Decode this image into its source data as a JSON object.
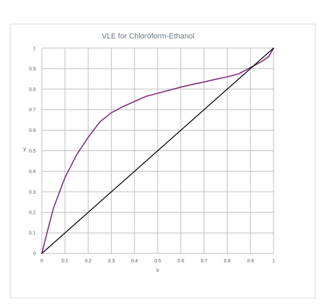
{
  "chart_data": {
    "type": "line",
    "title": "VLE for Chloroform-Ethanol",
    "xlabel": "x",
    "ylabel": "y",
    "xlim": [
      0,
      1
    ],
    "ylim": [
      0,
      1
    ],
    "x_ticks": [
      "0",
      "0.1",
      "0.2",
      "0.3",
      "0.4",
      "0.5",
      "0.6",
      "0.7",
      "0.8",
      "0.9",
      "1"
    ],
    "y_ticks": [
      "0",
      "0.1",
      "0.2",
      "0.3",
      "0.4",
      "0.5",
      "0.6",
      "0.7",
      "0.8",
      "0.9",
      "1"
    ],
    "grid": true,
    "series": [
      {
        "color": "#7b2a78",
        "x": [
          0,
          0.02,
          0.05,
          0.1,
          0.15,
          0.2,
          0.25,
          0.3,
          0.35,
          0.4,
          0.45,
          0.5,
          0.55,
          0.6,
          0.65,
          0.7,
          0.75,
          0.8,
          0.85,
          0.9,
          0.95,
          0.98,
          1.0
        ],
        "y": [
          0,
          0.09,
          0.22,
          0.37,
          0.48,
          0.565,
          0.64,
          0.685,
          0.715,
          0.74,
          0.765,
          0.78,
          0.795,
          0.81,
          0.823,
          0.835,
          0.848,
          0.86,
          0.875,
          0.905,
          0.935,
          0.96,
          1.0
        ]
      },
      {
        "color": "#000000",
        "x": [
          0,
          1
        ],
        "y": [
          0,
          1
        ]
      }
    ]
  }
}
